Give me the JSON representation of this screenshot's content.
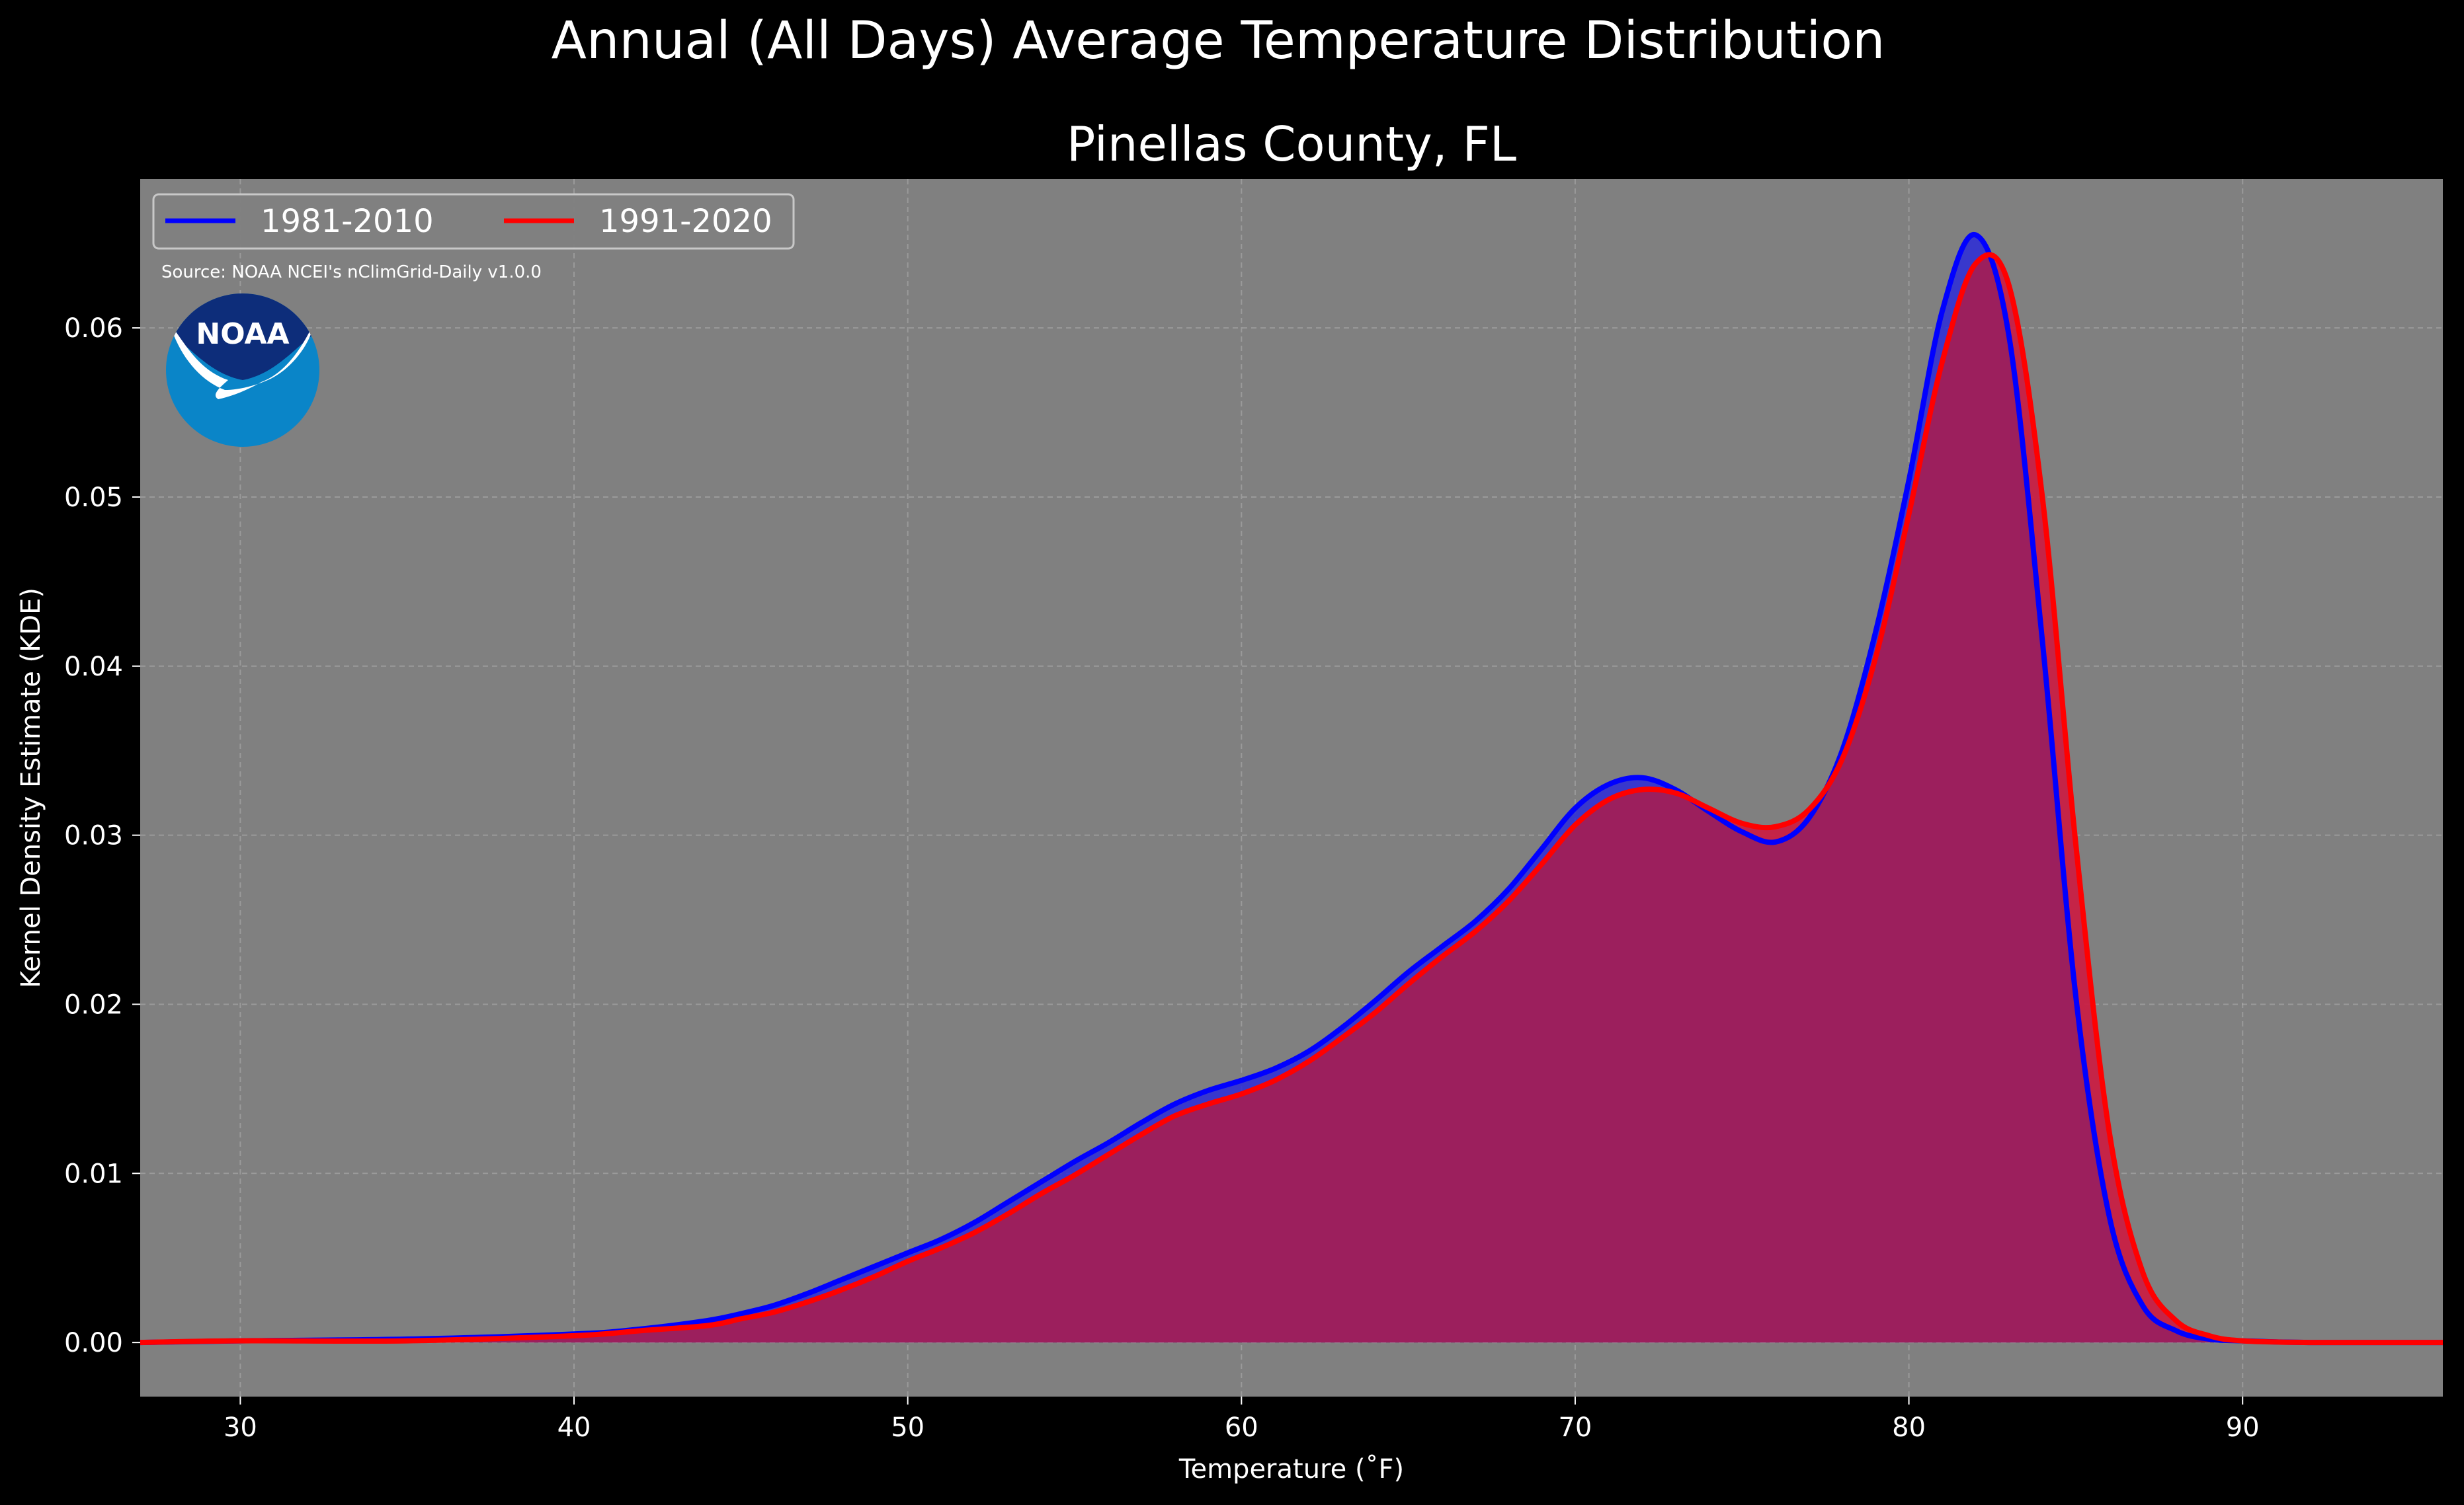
{
  "chart_data": {
    "type": "area",
    "title": "Annual (All Days) Average Temperature Distribution",
    "subtitle": "Pinellas County, FL",
    "xlabel": "Temperature ($^\\circ$F)",
    "xlabel_display": "Temperature (˚F)",
    "ylabel": "Kernel Density Estimate (KDE)",
    "xlim": [
      27,
      96
    ],
    "ylim": [
      -0.0032,
      0.0688
    ],
    "xticks": [
      30,
      40,
      50,
      60,
      70,
      80,
      90
    ],
    "xtick_labels": [
      "30",
      "40",
      "50",
      "60",
      "70",
      "80",
      "90"
    ],
    "yticks": [
      0.0,
      0.01,
      0.02,
      0.03,
      0.04,
      0.05,
      0.06
    ],
    "ytick_labels": [
      "0.00",
      "0.01",
      "0.02",
      "0.03",
      "0.04",
      "0.05",
      "0.06"
    ],
    "grid": true,
    "legend_position": "top-left",
    "source_note": "Source: NOAA NCEI's nClimGrid-Daily v1.0.0",
    "logo_label": "NOAA",
    "series": [
      {
        "name": "1981-2010",
        "color": "#0000ff",
        "fill_color": "#2b2bd9",
        "x": [
          27,
          30,
          35,
          40,
          42,
          44,
          45,
          46,
          47,
          48,
          49,
          50,
          51,
          52,
          53,
          54,
          55,
          56,
          57,
          58,
          59,
          60,
          61,
          62,
          63,
          64,
          65,
          66,
          67,
          68,
          69,
          70,
          71,
          72,
          73,
          74,
          75,
          76,
          77,
          78,
          79,
          80,
          81,
          82,
          83,
          84,
          85,
          86,
          87,
          88,
          89,
          90,
          92,
          96
        ],
        "y": [
          0.0,
          0.0001,
          0.0002,
          0.0005,
          0.0008,
          0.0013,
          0.0017,
          0.0022,
          0.0029,
          0.0037,
          0.0045,
          0.0053,
          0.0061,
          0.0071,
          0.0083,
          0.0095,
          0.0107,
          0.0118,
          0.013,
          0.0141,
          0.0149,
          0.0155,
          0.0162,
          0.0172,
          0.0186,
          0.0202,
          0.0219,
          0.0234,
          0.0249,
          0.0268,
          0.0292,
          0.0316,
          0.033,
          0.0334,
          0.0327,
          0.0314,
          0.0302,
          0.0296,
          0.031,
          0.035,
          0.042,
          0.051,
          0.061,
          0.0655,
          0.0595,
          0.0415,
          0.0205,
          0.0075,
          0.0022,
          0.0007,
          0.0002,
          0.0001,
          0.0,
          0.0
        ]
      },
      {
        "name": "1991-2020",
        "color": "#ff0000",
        "fill_color": "#cc1a40",
        "x": [
          27,
          30,
          35,
          40,
          42,
          44,
          45,
          46,
          47,
          48,
          49,
          50,
          51,
          52,
          53,
          54,
          55,
          56,
          57,
          58,
          59,
          60,
          61,
          62,
          63,
          64,
          65,
          66,
          67,
          68,
          69,
          70,
          71,
          72,
          73,
          74,
          75,
          76,
          77,
          78,
          79,
          80,
          81,
          82,
          83,
          84,
          85,
          86,
          87,
          88,
          89,
          90,
          92,
          96
        ],
        "y": [
          0.0,
          0.0001,
          0.0001,
          0.0004,
          0.0007,
          0.001,
          0.0014,
          0.0018,
          0.0024,
          0.0031,
          0.0039,
          0.0048,
          0.0056,
          0.0065,
          0.0076,
          0.0088,
          0.0099,
          0.0111,
          0.0123,
          0.0134,
          0.0141,
          0.0147,
          0.0155,
          0.0166,
          0.018,
          0.0195,
          0.0212,
          0.0228,
          0.0243,
          0.0261,
          0.0283,
          0.0306,
          0.0321,
          0.0327,
          0.0325,
          0.0316,
          0.0307,
          0.0305,
          0.0315,
          0.0345,
          0.0405,
          0.049,
          0.058,
          0.0638,
          0.0625,
          0.05,
          0.0295,
          0.0125,
          0.0042,
          0.0013,
          0.0004,
          0.0001,
          0.0,
          0.0
        ]
      }
    ],
    "overlap_fill_color": "#9c1f5d"
  }
}
